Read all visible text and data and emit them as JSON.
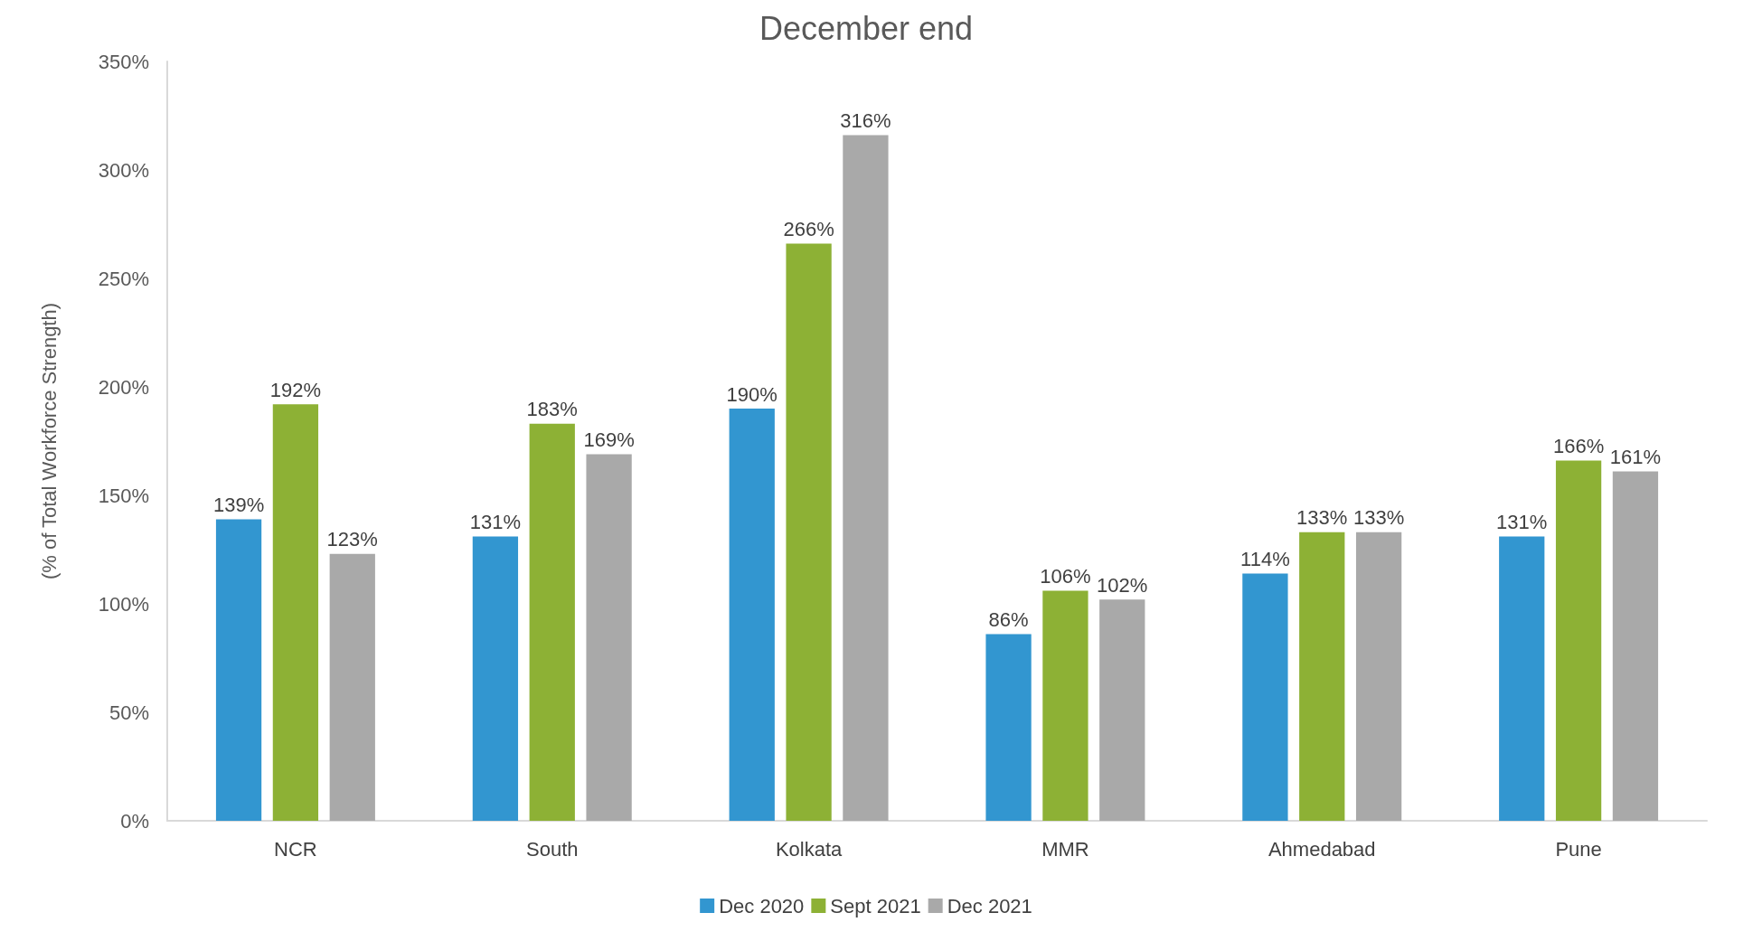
{
  "chart_data": {
    "type": "bar",
    "title": "December end",
    "ylabel": "(% of Total Workforce Strength)",
    "categories": [
      "NCR",
      "South",
      "Kolkata",
      "MMR",
      "Ahmedabad",
      "Pune"
    ],
    "series": [
      {
        "name": "Dec 2020",
        "color": "#3296d0",
        "values": [
          139,
          131,
          190,
          86,
          114,
          131
        ],
        "value_labels": [
          "139%",
          "131%",
          "190%",
          "86%",
          "114%",
          "131%"
        ]
      },
      {
        "name": "Sept 2021",
        "color": "#8db135",
        "values": [
          192,
          183,
          266,
          106,
          133,
          166
        ],
        "value_labels": [
          "192%",
          "183%",
          "266%",
          "106%",
          "133%",
          "166%"
        ]
      },
      {
        "name": "Dec 2021",
        "color": "#a9a9a9",
        "values": [
          123,
          169,
          316,
          102,
          133,
          161
        ],
        "value_labels": [
          "123%",
          "169%",
          "316%",
          "102%",
          "133%",
          "161%"
        ]
      }
    ],
    "ylim": [
      0,
      350
    ],
    "yticks": [
      {
        "value": 0,
        "label": "0%"
      },
      {
        "value": 50,
        "label": "50%"
      },
      {
        "value": 100,
        "label": "100%"
      },
      {
        "value": 150,
        "label": "150%"
      },
      {
        "value": 200,
        "label": "200%"
      },
      {
        "value": 250,
        "label": "250%"
      },
      {
        "value": 300,
        "label": "300%"
      },
      {
        "value": 350,
        "label": "350%"
      }
    ],
    "grid": false,
    "legend": "bottom"
  }
}
